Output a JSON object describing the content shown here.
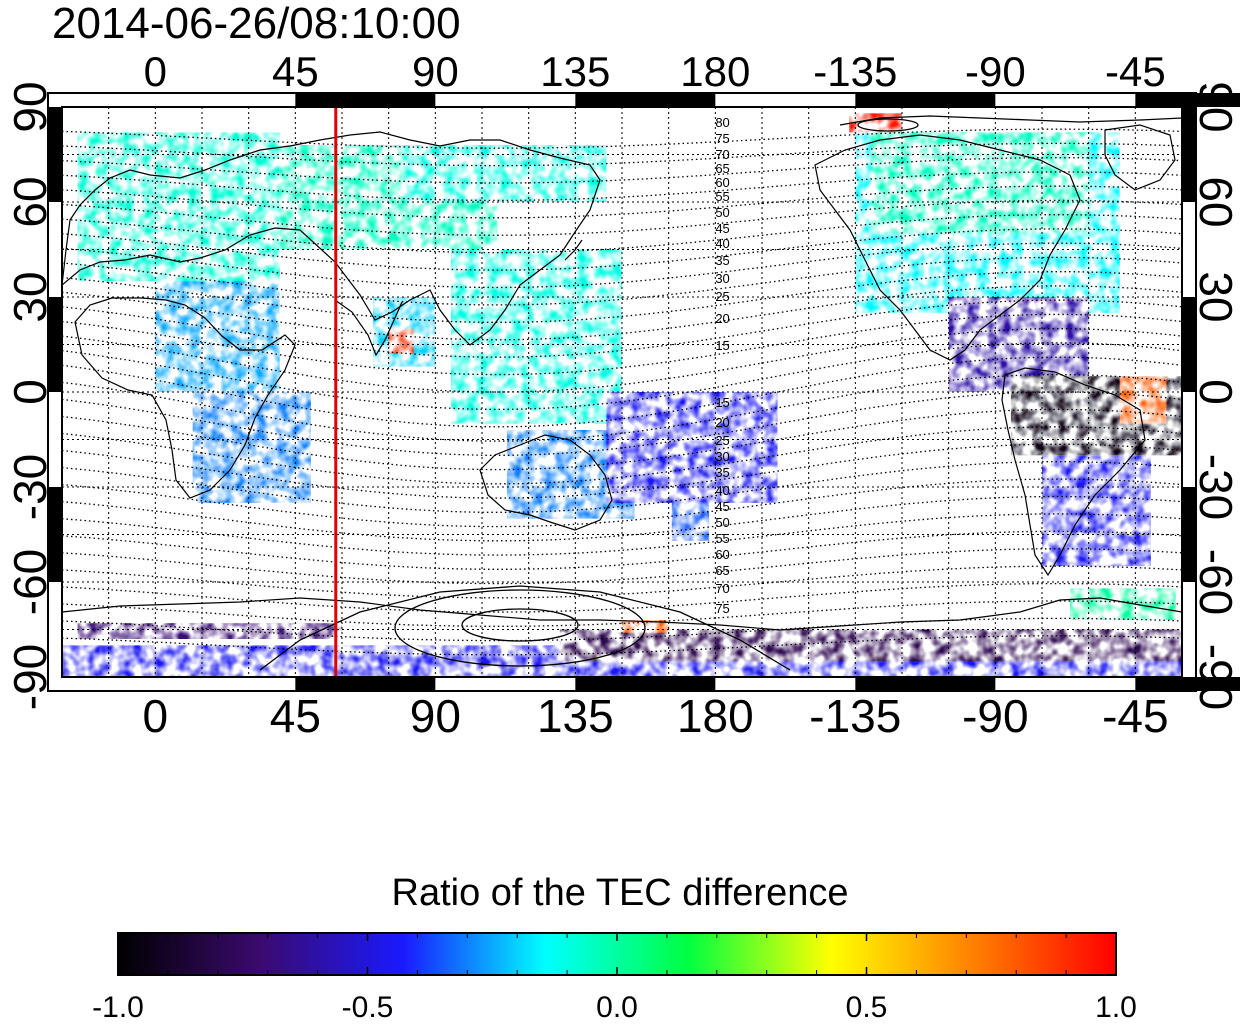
{
  "timestamp": "2014-06-26/08:10:00",
  "chart_data": {
    "type": "heatmap",
    "title": "2014-06-26/08:10:00",
    "map_projection": "equirectangular",
    "lon_range": [
      -30,
      330
    ],
    "lat_range": [
      -90,
      90
    ],
    "x_ticks": [
      {
        "lon": 0,
        "label": "0"
      },
      {
        "lon": 45,
        "label": "45"
      },
      {
        "lon": 90,
        "label": "90"
      },
      {
        "lon": 135,
        "label": "135"
      },
      {
        "lon": 180,
        "label": "180"
      },
      {
        "lon": 225,
        "label": "-135"
      },
      {
        "lon": 270,
        "label": "-90"
      },
      {
        "lon": 315,
        "label": "-45"
      }
    ],
    "y_ticks": [
      {
        "lat": 90,
        "label": "90"
      },
      {
        "lat": 60,
        "label": "60"
      },
      {
        "lat": 30,
        "label": "30"
      },
      {
        "lat": 0,
        "label": "0"
      },
      {
        "lat": -30,
        "label": "-30"
      },
      {
        "lat": -60,
        "label": "-60"
      },
      {
        "lat": -90,
        "label": "-90"
      }
    ],
    "grid": true,
    "terminator_longitude": 58,
    "terminator_color": "#e00000",
    "contour_labels_north": [
      "80",
      "75",
      "70",
      "65",
      "60",
      "55",
      "50",
      "45",
      "40",
      "35",
      "30",
      "25",
      "20",
      "15"
    ],
    "contour_labels_south": [
      "15",
      "20",
      "25",
      "30",
      "35",
      "40",
      "45",
      "50",
      "55",
      "60",
      "65",
      "70",
      "75"
    ],
    "contour_label_lon": 180,
    "colorbar": {
      "label": "Ratio of the TEC difference",
      "min": -1.0,
      "max": 1.0,
      "ticks": [
        "-1.0",
        "-0.5",
        "0.0",
        "0.5",
        "1.0"
      ],
      "colormap": [
        "#000000",
        "#3a0a6e",
        "#1a1aff",
        "#00ffff",
        "#00ff40",
        "#ffff00",
        "#ff8000",
        "#ff0000"
      ]
    },
    "data_regions": [
      {
        "lon": [
          -25,
          40
        ],
        "lat": [
          35,
          82
        ],
        "value": -0.08
      },
      {
        "lon": [
          40,
          110
        ],
        "lat": [
          45,
          78
        ],
        "value": -0.05
      },
      {
        "lon": [
          80,
          145
        ],
        "lat": [
          60,
          78
        ],
        "value": -0.1
      },
      {
        "lon": [
          0,
          40
        ],
        "lat": [
          0,
          35
        ],
        "value": -0.25
      },
      {
        "lon": [
          12,
          50
        ],
        "lat": [
          -35,
          0
        ],
        "value": -0.3
      },
      {
        "lon": [
          70,
          90
        ],
        "lat": [
          8,
          30
        ],
        "value": -0.2
      },
      {
        "lon": [
          75,
          83
        ],
        "lat": [
          12,
          20
        ],
        "value": 0.9
      },
      {
        "lon": [
          95,
          150
        ],
        "lat": [
          -10,
          45
        ],
        "value": -0.1
      },
      {
        "lon": [
          113,
          154
        ],
        "lat": [
          -40,
          -12
        ],
        "value": -0.3
      },
      {
        "lon": [
          166,
          178
        ],
        "lat": [
          -47,
          -35
        ],
        "value": -0.35
      },
      {
        "lon": [
          145,
          200
        ],
        "lat": [
          -35,
          0
        ],
        "value": -0.45
      },
      {
        "lon": [
          225,
          310
        ],
        "lat": [
          25,
          82
        ],
        "value": -0.15
      },
      {
        "lon": [
          230,
          300
        ],
        "lat": [
          50,
          82
        ],
        "value": -0.05
      },
      {
        "lon": [
          255,
          300
        ],
        "lat": [
          0,
          30
        ],
        "value": -0.6
      },
      {
        "lon": [
          275,
          330
        ],
        "lat": [
          -20,
          5
        ],
        "value": -0.95
      },
      {
        "lon": [
          310,
          325
        ],
        "lat": [
          -10,
          5
        ],
        "value": 0.8
      },
      {
        "lon": [
          285,
          320
        ],
        "lat": [
          -55,
          -20
        ],
        "value": -0.45
      },
      {
        "lon": [
          294,
          328
        ],
        "lat": [
          -72,
          -62
        ],
        "value": 0.0
      },
      {
        "lon": [
          -30,
          330
        ],
        "lat": [
          -90,
          -80
        ],
        "value": -0.45
      },
      {
        "lon": [
          130,
          330
        ],
        "lat": [
          -85,
          -75
        ],
        "value": -0.8
      },
      {
        "lon": [
          -25,
          60
        ],
        "lat": [
          -78,
          -73
        ],
        "value": -0.7
      },
      {
        "lon": [
          150,
          165
        ],
        "lat": [
          -76,
          -72
        ],
        "value": 0.8
      },
      {
        "lon": [
          223,
          240
        ],
        "lat": [
          82,
          88
        ],
        "value": 0.95
      }
    ]
  }
}
